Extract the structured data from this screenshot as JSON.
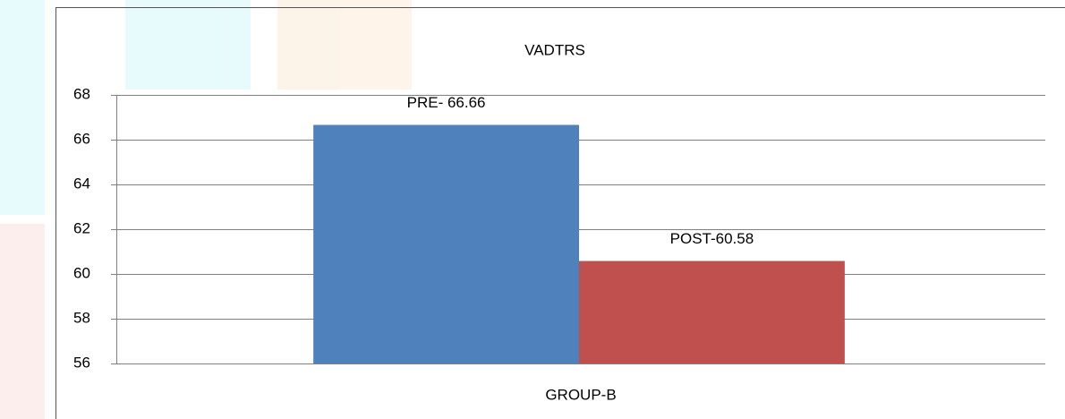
{
  "chart_data": {
    "type": "bar",
    "title": "VADTRS",
    "categories": [
      "GROUP-B"
    ],
    "series": [
      {
        "color": "#4f81bd",
        "values": [
          66.66
        ],
        "value_labels": [
          "PRE- 66.66"
        ]
      },
      {
        "color": "#c0504d",
        "values": [
          60.58
        ],
        "value_labels": [
          "POST-60.58"
        ]
      }
    ],
    "ylim": [
      56,
      68
    ],
    "yticks": [
      56,
      58,
      60,
      62,
      64,
      66,
      68
    ],
    "grid": true
  }
}
